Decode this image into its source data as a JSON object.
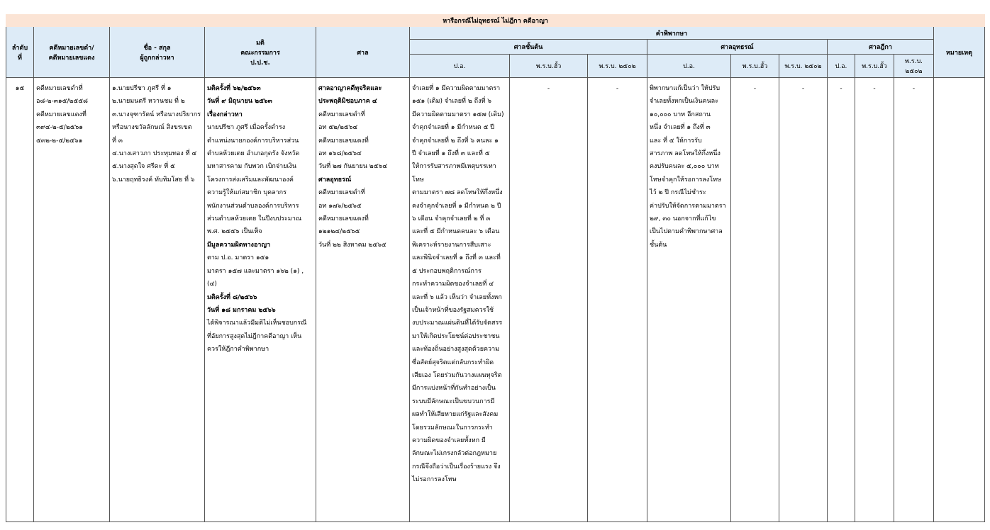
{
  "title": "หารือกรณีไม่อุทธรณ์ ไม่ฎีกา คดีอาญา",
  "header": {
    "no": [
      "ลำดับ",
      "ที่"
    ],
    "case": [
      "คดีหมายเลขดำ/",
      "คดีหมายเลขแดง"
    ],
    "name": [
      "ชื่อ - สกุล",
      "ผู้ถูกกล่าวหา"
    ],
    "resolution": [
      "มติ",
      "คณะกรรมการ",
      "ป.ป.ช."
    ],
    "court": "ศาล",
    "judgment": "คำพิพากษา",
    "first_court": "ศาลชั้นต้น",
    "appeal_court": "ศาลอุทธรณ์",
    "supreme_court": "ศาลฎีกา",
    "remark": "หมายเหตุ",
    "sub": [
      "ป.อ.",
      "พ.ร.บ.ฮั้ว",
      "พ.ร.บ. ๒๕๐๒",
      "ป.อ.",
      "พ.ร.บ.ฮั้ว",
      "พ.ร.บ. ๒๕๐๒",
      "ป.อ.",
      "พ.ร.บ.ฮั้ว",
      "พ.ร.บ. ๒๕๐๒"
    ]
  },
  "table": {
    "rows": [
      [
        [
          "๑๕"
        ],
        [
          "คดีหมายเลขดำที่",
          "อ๘-๒-๓๑๕/๒๕๕๘",
          "คดีหมายเลขแดงที่",
          "๓๙๔-๒-๕/๒๕๖๑",
          "๕๓๒-๒-๕/๒๕๖๑"
        ],
        [
          "๑.นายปรีชา  ภูศรี ที่ ๑",
          "๒.นายมนตรี  หวานชม ที่ ๒",
          "๓.นางจุฑารัตน์ หรือนางปริยากร",
          "หรือนางขวัลลักษณ์  สิงขรเขต",
          "ที่ ๓",
          "๔.นางเสาวภา ประทุมทอง ที่ ๔",
          "๕.นางสุดใจ ศรีดะ ที่ ๕",
          "๖.นายฤทธิรงค์ ทับทิมโสย ที่ ๖"
        ],
        [
          "มติครั้งที่ ๖๒/๒๕๖๓",
          "วันที่ ๙ มิถุนายน ๒๕๖๓",
          "เรื่องกล่าวหา",
          "นายปรีชา  ภูศรี เมื่อครั้งดำรง",
          "ตำแหน่งนายกองค์การบริหารส่วน",
          "ตำบลห้วยเตย อำเภอกุดรัง จังหวัด",
          "มหาสารคาม กับพวก เบิกจ่ายเงิน",
          "โครงการส่งเสริมและพัฒนาองค์",
          "ความรู้ให้แก่สมาชิก บุคลากร",
          "พนักงานส่วนตำบลองค์การบริหาร",
          "ส่วนตำบลห้วยเตย ในปีงบประมาณ",
          "พ.ศ. ๒๕๕๖ เป็นเท็จ",
          "มีมูลความผิดทางอาญา",
          "ตาม ป.อ. มาตรา ๑๕๑",
          "มาตรา ๑๕๗ และมาตรา ๑๖๒ (๑) ,",
          "(๔)",
          "มติครั้งที่ ๘/๒๕๖๖",
          "วันที่ ๑๘ มกราคม ๒๕๖๖",
          "ได้พิจารณาแล้วมีมติไม่เห็นชอบกรณี",
          "ที่อัยการสูงสุดไม่ฎีกาคดีอาญา เห็น",
          "ควรให้ฎีกาคำพิพากษา"
        ],
        [
          "ศาลอาญาคดีทุจริตและ",
          "ประพฤติมิชอบภาค ๔",
          "คดีหมายเลขดำที่",
          "อท ๕๒/๒๕๖๔",
          "คดีหมายเลขแดงที่",
          "อท ๑๖๘/๒๕๖๔",
          "วันที่ ๒๗ กันยายน ๒๕๖๔",
          "ศาลอุทธรณ์",
          "คดีหมายเลขดำที่",
          "อท ๑๗๖/๒๕๖๕",
          "คดีหมายเลขแดงที่",
          "๑๒๑๒๔/๒๕๖๕",
          "วันที่ ๒๒ สิงหาคม ๒๕๖๕"
        ],
        [
          "จำเลยที่ ๑ มีความผิดตามมาตรา",
          "๑๕๑ (เดิม) จำเลยที่ ๒ ถึงที่ ๖",
          "มีความผิดตามมาตรา ๑๕๗ (เดิม)",
          "จำคุกจำเลยที่ ๑ มีกำหนด ๕ ปี",
          "จำคุกจำเลยที่ ๒ ถึงที่ ๖ คนละ ๑",
          "ปี จำเลยที่ ๑ ถึงที่ ๓ และที่ ๕",
          "ให้การรับสารภาพมีเหตุบรรเทา",
          "โทษ",
          "ตามมาตรา ๗๘ ลดโทษให้กึ่งหนึ่ง",
          "คงจำคุกจำเลยที่ ๑ มีกำหนด ๒ ปี",
          "๖ เดือน จำคุกจำเลยที่ ๒ ที่ ๓",
          "และที่ ๕ มีกำหนดคนละ ๖ เดือน",
          "พิเคราะห์รายงานการสืบเสาะ",
          "และพินิจจำเลยที่ ๑ ถึงที่ ๓ และที่",
          "๕ ประกอบพฤติการณ์การ",
          "กระทำความผิดของจำเลยที่ ๔",
          "และที่ ๖ แล้ว เห็นว่า จำเลยทั้งหก",
          "เป็นเจ้าหน้าที่ของรัฐสมควรใช้",
          "งบประมาณแผ่นดินที่ได้รับจัดสรร",
          "มาให้เกิดประโยชน์ต่อประชาชน",
          "และท้องถิ่นอย่างสูงสุดด้วยความ",
          "ซื่อสัตย์สุจริตแต่กลับกระทำผิด",
          "เสียเอง โดยร่วมกันวางแผนทุจริต",
          "มีการแบ่งหน้าที่กันทำอย่างเป็น",
          "ระบบมีลักษณะเป็นขบวนการมี",
          "ผลทำให้เสียหายแก่รัฐและสังคม",
          "โดยรวมลักษณะในการกระทำ",
          "ความผิดของจำเลยทั้งหก มี",
          "ลักษณะไม่เกรงกลัวต่อกฎหมาย",
          "กรณีจึงถือว่าเป็นเรื่องร้ายแรง จึง",
          "ไม่รอการลงโทษ"
        ],
        [
          "-"
        ],
        [
          "-"
        ],
        [
          "พิพากษาแก้เป็นว่า ให้ปรับ",
          "จำเลยทั้งหกเป็นเงินคนละ",
          "๑๐,๐๐๐ บาท อีกสถาน",
          "หนึ่ง จำเลยที่ ๑ ถึงที่ ๓",
          "และ ที่ ๕ ให้การรับ",
          "สารภาพ ลดโทษให้กึ่งหนึ่ง",
          "คงปรับคนละ ๕,๐๐๐ บาท",
          "โทษจำคุกให้รอการลงโทษ",
          "ไว้ ๒ ปี กรณีไม่ชำระ",
          "ค่าปรับให้จัดการตามมาตรา",
          "๒๙, ๓๐ นอกจากที่แก้ไข",
          "เป็นไปตามคำพิพากษาศาล",
          "ชั้นต้น"
        ],
        [
          "-"
        ],
        [
          "-"
        ],
        [
          "-"
        ],
        [
          "-"
        ],
        [
          "-"
        ],
        []
      ]
    ]
  }
}
